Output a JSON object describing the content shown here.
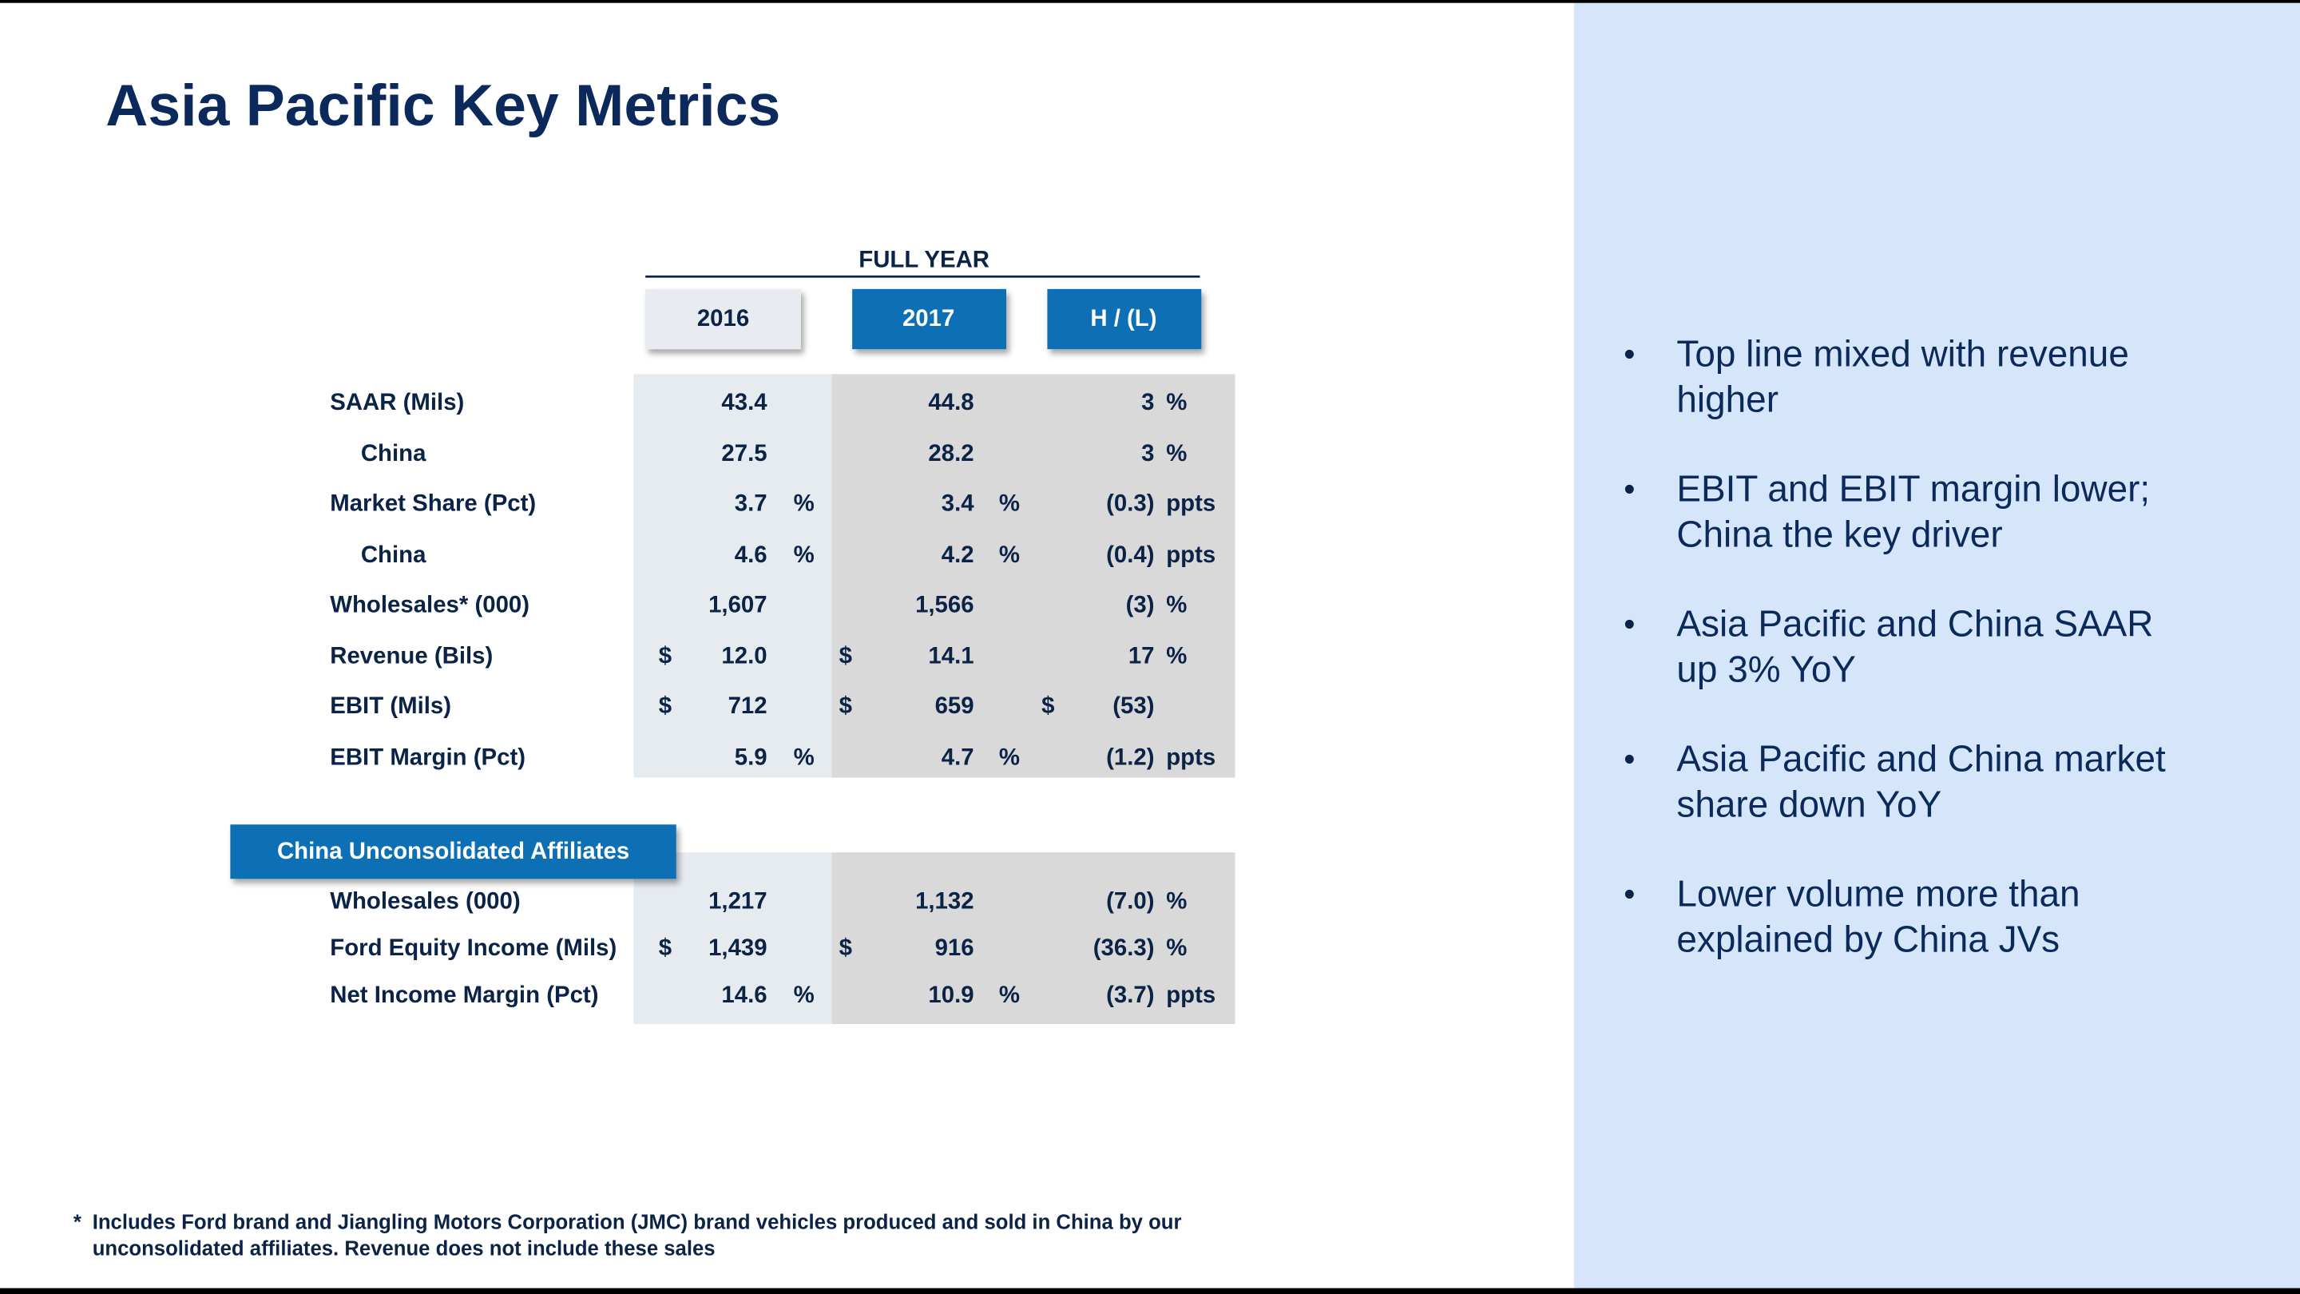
{
  "title": "Asia Pacific Key Metrics",
  "table": {
    "group_header": "FULL YEAR",
    "columns": [
      "2016",
      "2017",
      "H / (L)"
    ],
    "rows": [
      {
        "label": "SAAR (Mils)",
        "y2016": {
          "value": "43.4"
        },
        "y2017": {
          "value": "44.8"
        },
        "hl": {
          "value": "3",
          "unit": "%"
        }
      },
      {
        "label": "China",
        "indent": true,
        "y2016": {
          "value": "27.5"
        },
        "y2017": {
          "value": "28.2"
        },
        "hl": {
          "value": "3",
          "unit": "%"
        }
      },
      {
        "label": "Market Share (Pct)",
        "y2016": {
          "value": "3.7",
          "unit": "%"
        },
        "y2017": {
          "value": "3.4",
          "unit": "%"
        },
        "hl": {
          "value": "(0.3)",
          "unit": "ppts"
        }
      },
      {
        "label": "China",
        "indent": true,
        "y2016": {
          "value": "4.6",
          "unit": "%"
        },
        "y2017": {
          "value": "4.2",
          "unit": "%"
        },
        "hl": {
          "value": "(0.4)",
          "unit": "ppts"
        }
      },
      {
        "label": "Wholesales* (000)",
        "y2016": {
          "value": "1,607"
        },
        "y2017": {
          "value": "1,566"
        },
        "hl": {
          "value": "(3)",
          "unit": "%"
        }
      },
      {
        "label": "Revenue (Bils)",
        "y2016": {
          "currency": "$",
          "value": "12.0"
        },
        "y2017": {
          "currency": "$",
          "value": "14.1"
        },
        "hl": {
          "value": "17",
          "unit": "%"
        }
      },
      {
        "label": "EBIT (Mils)",
        "y2016": {
          "currency": "$",
          "value": "712"
        },
        "y2017": {
          "currency": "$",
          "value": "659"
        },
        "hl": {
          "currency": "$",
          "value": "(53)"
        }
      },
      {
        "label": "EBIT Margin (Pct)",
        "y2016": {
          "value": "5.9",
          "unit": "%"
        },
        "y2017": {
          "value": "4.7",
          "unit": "%"
        },
        "hl": {
          "value": "(1.2)",
          "unit": "ppts"
        }
      }
    ]
  },
  "affiliates": {
    "title": "China Unconsolidated Affiliates",
    "rows": [
      {
        "label": "Wholesales (000)",
        "y2016": {
          "value": "1,217"
        },
        "y2017": {
          "value": "1,132"
        },
        "hl": {
          "value": "(7.0)",
          "unit": "%"
        }
      },
      {
        "label": "Ford Equity Income (Mils)",
        "y2016": {
          "currency": "$",
          "value": "1,439"
        },
        "y2017": {
          "currency": "$",
          "value": "916"
        },
        "hl": {
          "value": "(36.3)",
          "unit": "%"
        }
      },
      {
        "label": "Net Income Margin (Pct)",
        "y2016": {
          "value": "14.6",
          "unit": "%"
        },
        "y2017": {
          "value": "10.9",
          "unit": "%"
        },
        "hl": {
          "value": "(3.7)",
          "unit": "ppts"
        }
      }
    ]
  },
  "bullets": [
    [
      "Top line mixed with revenue",
      "higher"
    ],
    [
      "EBIT and EBIT margin lower;",
      "China the key driver"
    ],
    [
      "Asia Pacific and China SAAR",
      "up 3% YoY"
    ],
    [
      "Asia Pacific and China market",
      "share down YoY"
    ],
    [
      "Lower volume more than",
      "explained by China JVs"
    ]
  ],
  "footnote": {
    "marker": "*",
    "lines": [
      "Includes Ford brand and Jiangling Motors Corporation (JMC) brand vehicles produced and sold in China by our",
      "unconsolidated affiliates.  Revenue does not include these sales"
    ]
  }
}
